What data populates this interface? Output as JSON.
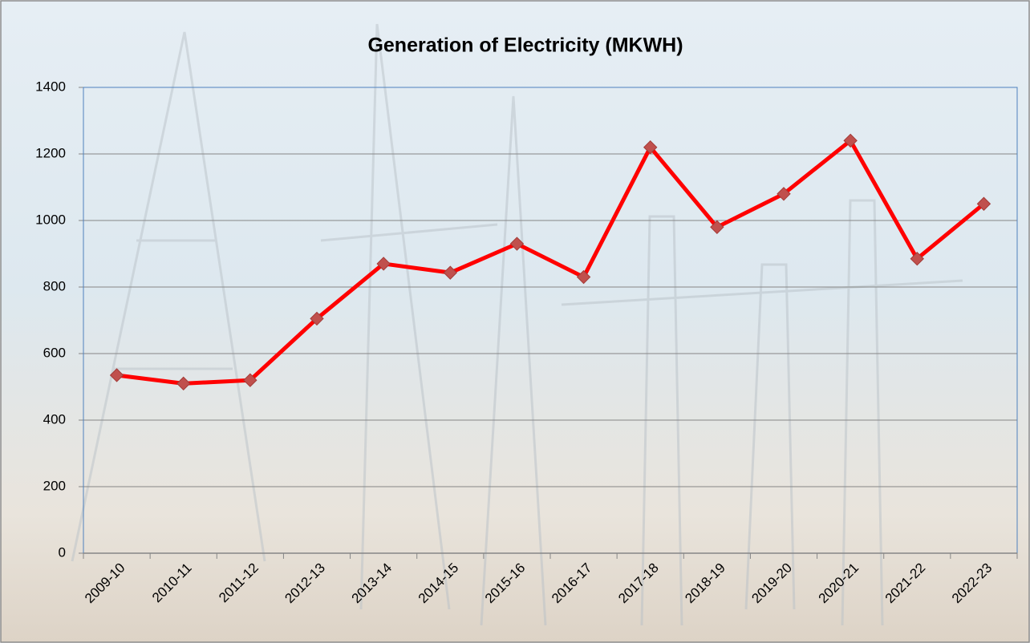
{
  "chart_data": {
    "type": "line",
    "title": "Generation of Electricity (MKWH)",
    "categories": [
      "2009-10",
      "2010-11",
      "2011-12",
      "2012-13",
      "2013-14",
      "2014-15",
      "2015-16",
      "2016-17",
      "2017-18",
      "2018-19",
      "2019-20",
      "2020-21",
      "2021-22",
      "2022-23"
    ],
    "values": [
      535,
      510,
      520,
      705,
      870,
      843,
      930,
      830,
      1220,
      980,
      1080,
      1240,
      885,
      1050
    ],
    "color": "#ff0000",
    "marker_color": "#c0504d",
    "ylim": [
      0,
      1400
    ],
    "yticks": [
      0,
      200,
      400,
      600,
      800,
      1000,
      1200,
      1400
    ],
    "grid": true
  }
}
